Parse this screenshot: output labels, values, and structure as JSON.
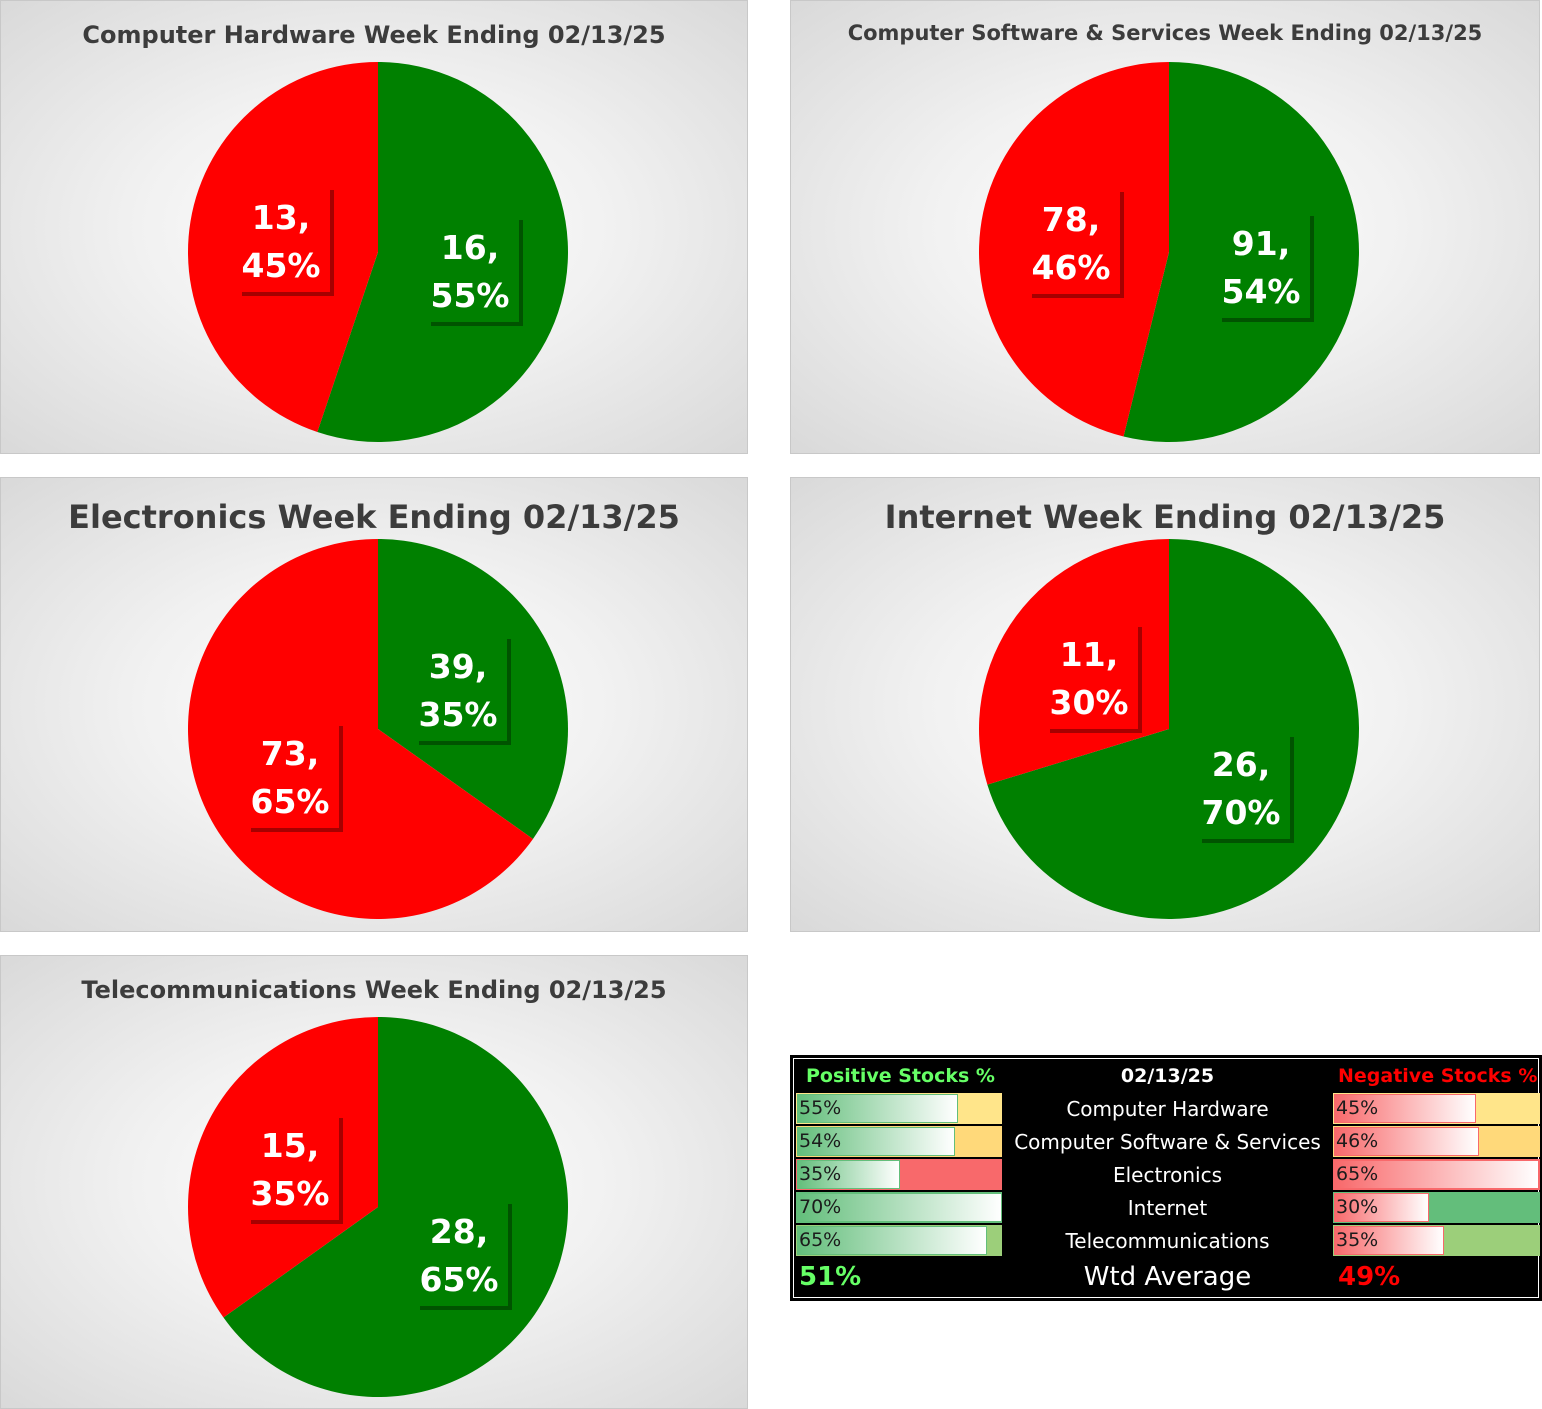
{
  "colors": {
    "positive": "#008000",
    "negative": "#ff0000",
    "label_text": "#ffffff"
  },
  "chart_data": [
    {
      "type": "pie",
      "title": "Computer Hardware Week Ending 02/13/25",
      "labels": [
        "Positive",
        "Negative"
      ],
      "values": [
        16,
        13
      ],
      "percents": [
        "55%",
        "45%"
      ],
      "value_labels": [
        "16,",
        "13,"
      ]
    },
    {
      "type": "pie",
      "title": "Computer Software & Services Week Ending 02/13/25",
      "labels": [
        "Positive",
        "Negative"
      ],
      "values": [
        91,
        78
      ],
      "percents": [
        "54%",
        "46%"
      ],
      "value_labels": [
        "91,",
        "78,"
      ]
    },
    {
      "type": "pie",
      "title": "Electronics Week Ending 02/13/25",
      "labels": [
        "Positive",
        "Negative"
      ],
      "values": [
        39,
        73
      ],
      "percents": [
        "35%",
        "65%"
      ],
      "value_labels": [
        "39,",
        "73,"
      ]
    },
    {
      "type": "pie",
      "title": "Internet Week Ending 02/13/25",
      "labels": [
        "Positive",
        "Negative"
      ],
      "values": [
        26,
        11
      ],
      "percents": [
        "70%",
        "30%"
      ],
      "value_labels": [
        "26,",
        "11,"
      ]
    },
    {
      "type": "pie",
      "title": "Telecommunications Week Ending 02/13/25",
      "labels": [
        "Positive",
        "Negative"
      ],
      "values": [
        28,
        15
      ],
      "percents": [
        "65%",
        "35%"
      ],
      "value_labels": [
        "28,",
        "15,"
      ]
    }
  ],
  "summary": {
    "header_positive": "Positive Stocks %",
    "header_date": "02/13/25",
    "header_negative": "Negative Stocks %",
    "header_positive_color": "#66ff66",
    "header_negative_color": "#ff0000",
    "rows": [
      {
        "category": "Computer Hardware",
        "positive": "55%",
        "negative": "45%",
        "positive_value": 55,
        "negative_value": 45,
        "pos_bg": "#ffe58a",
        "neg_bg": "#ffe58a"
      },
      {
        "category": "Computer Software & Services",
        "positive": "54%",
        "negative": "46%",
        "positive_value": 54,
        "negative_value": 46,
        "pos_bg": "#ffd97a",
        "neg_bg": "#ffd97a"
      },
      {
        "category": "Electronics",
        "positive": "35%",
        "negative": "65%",
        "positive_value": 35,
        "negative_value": 65,
        "pos_bg": "#f8696b",
        "neg_bg": "#f8696b"
      },
      {
        "category": "Internet",
        "positive": "70%",
        "negative": "30%",
        "positive_value": 70,
        "negative_value": 30,
        "pos_bg": "#63be7b",
        "neg_bg": "#63be7b"
      },
      {
        "category": "Telecommunications",
        "positive": "65%",
        "negative": "35%",
        "positive_value": 65,
        "negative_value": 35,
        "pos_bg": "#9ccf7a",
        "neg_bg": "#9ccf7a"
      }
    ],
    "total_label": "Wtd Average",
    "total_positive": "51%",
    "total_negative": "49%",
    "total_positive_color": "#66ff66",
    "total_negative_color": "#ff0000"
  }
}
